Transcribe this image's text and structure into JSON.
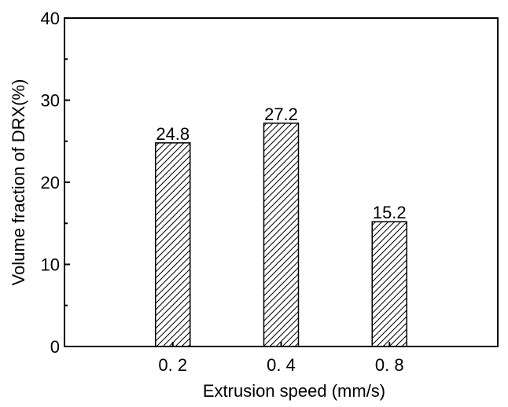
{
  "chart_data": {
    "type": "bar",
    "categories": [
      "0. 2",
      "0. 4",
      "0. 8"
    ],
    "values": [
      24.8,
      27.2,
      15.2
    ],
    "value_labels": [
      "24.8",
      "27.2",
      "15.2"
    ],
    "xlabel": "Extrusion speed (mm/s)",
    "ylabel": "Volume fraction of DRX(%)",
    "ylim": [
      0,
      40
    ],
    "yticks": [
      0,
      10,
      20,
      30,
      40
    ],
    "grid": false,
    "bar_fill": "hatch",
    "colors": {
      "bar_stroke": "#000000",
      "hatch": "#000000",
      "background": "#ffffff"
    }
  }
}
